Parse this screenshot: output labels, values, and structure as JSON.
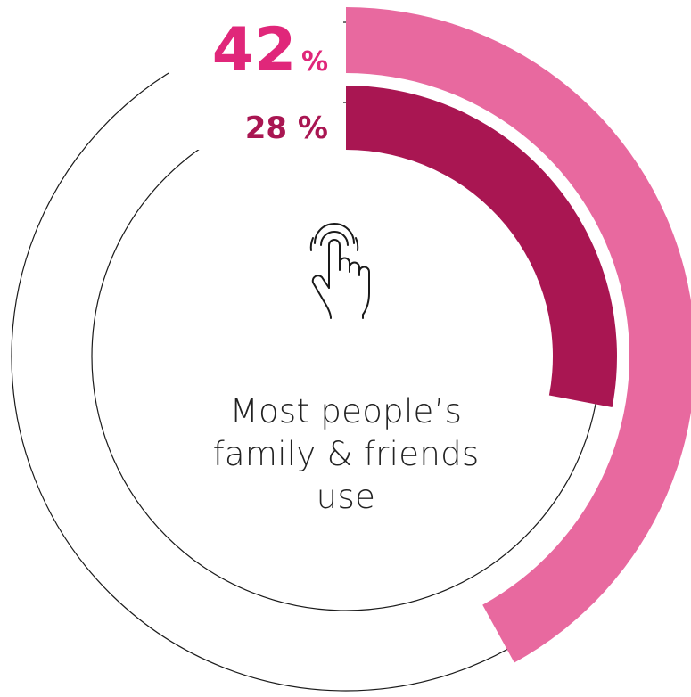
{
  "chart_data": {
    "type": "radial-bar",
    "series": [
      {
        "value": 42,
        "label_number": "42",
        "label_suffix": "%",
        "color": "#E8699F"
      },
      {
        "value": 28,
        "label_number": "28",
        "label_suffix": "%",
        "color": "#A91652"
      }
    ],
    "center_text": "Most people’s family & friends use",
    "icon": "tap-hand-icon"
  }
}
